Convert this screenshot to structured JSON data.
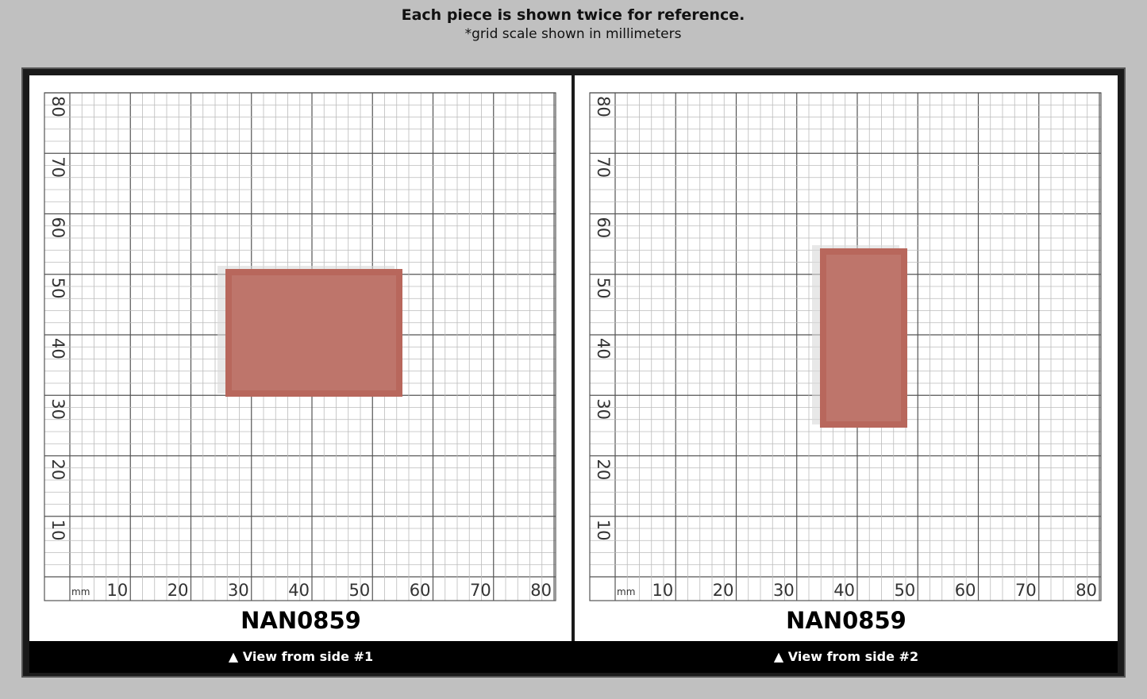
{
  "header": {
    "title": "Each piece is shown twice for reference.",
    "subtitle": "*grid scale shown in millimeters"
  },
  "grid": {
    "unit": "mm",
    "x_labels": [
      10,
      20,
      30,
      40,
      50,
      60,
      70,
      80
    ],
    "y_labels": [
      10,
      20,
      30,
      40,
      50,
      60,
      70,
      80
    ]
  },
  "panels": [
    {
      "code": "NAN0859",
      "caption": "▲ View from side #1"
    },
    {
      "code": "NAN0859",
      "caption": "▲ View from side #2"
    }
  ]
}
